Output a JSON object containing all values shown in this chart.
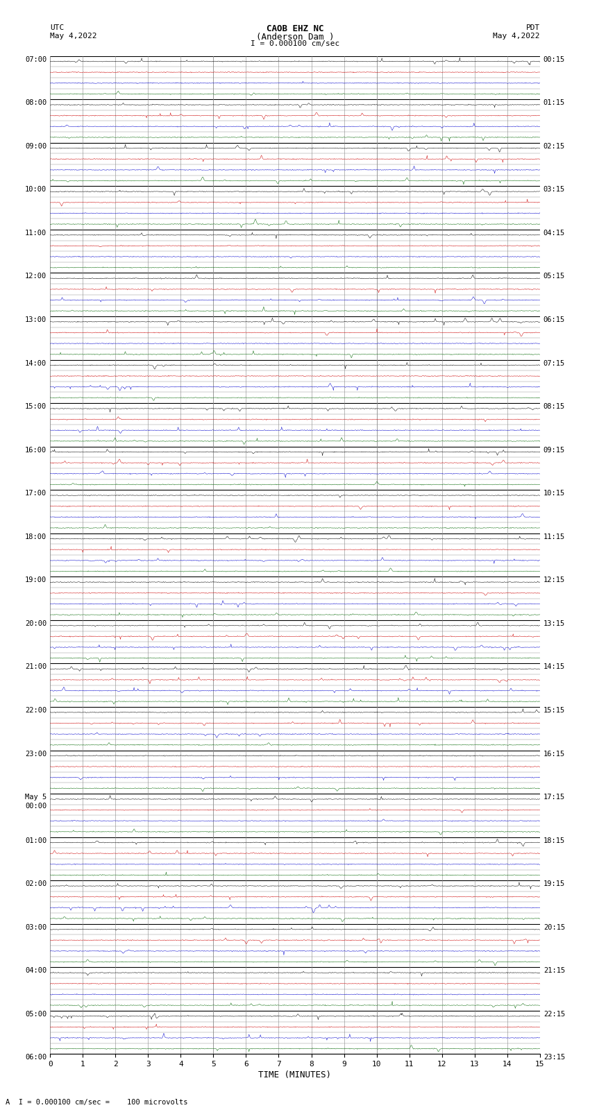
{
  "title_line1": "CAOB EHZ NC",
  "title_line2": "(Anderson Dam )",
  "title_scale": "I = 0.000100 cm/sec",
  "left_header_label": "UTC",
  "right_header_label": "PDT",
  "left_header_date": "May 4,2022",
  "right_header_date": "May 4,2022",
  "xlabel": "TIME (MINUTES)",
  "footer_text": "A  I = 0.000100 cm/sec =    100 microvolts",
  "background_color": "#ffffff",
  "trace_colors": [
    "#000000",
    "#cc0000",
    "#0000cc",
    "#006600"
  ],
  "grid_major_color": "#000000",
  "grid_minor_color": "#888888",
  "fig_width": 8.5,
  "fig_height": 16.13,
  "dpi": 100,
  "left_labels_utc": [
    "07:00",
    "08:00",
    "09:00",
    "10:00",
    "11:00",
    "12:00",
    "13:00",
    "14:00",
    "15:00",
    "16:00",
    "17:00",
    "18:00",
    "19:00",
    "20:00",
    "21:00",
    "22:00",
    "23:00",
    "May 5",
    "01:00",
    "02:00",
    "03:00",
    "04:00",
    "05:00",
    "06:00"
  ],
  "may5_label_idx": 17,
  "may5_sub_label": "00:00",
  "right_labels_pdt": [
    "00:15",
    "01:15",
    "02:15",
    "03:15",
    "04:15",
    "05:15",
    "06:15",
    "07:15",
    "08:15",
    "09:15",
    "10:15",
    "11:15",
    "12:15",
    "13:15",
    "14:15",
    "15:15",
    "16:15",
    "17:15",
    "18:15",
    "19:15",
    "20:15",
    "21:15",
    "22:15",
    "23:15"
  ],
  "num_hour_labels": 24,
  "rows_per_hour": 4,
  "samples_per_row": 900,
  "x_max": 15,
  "noise_base": 0.006,
  "spike_amp": 0.12
}
